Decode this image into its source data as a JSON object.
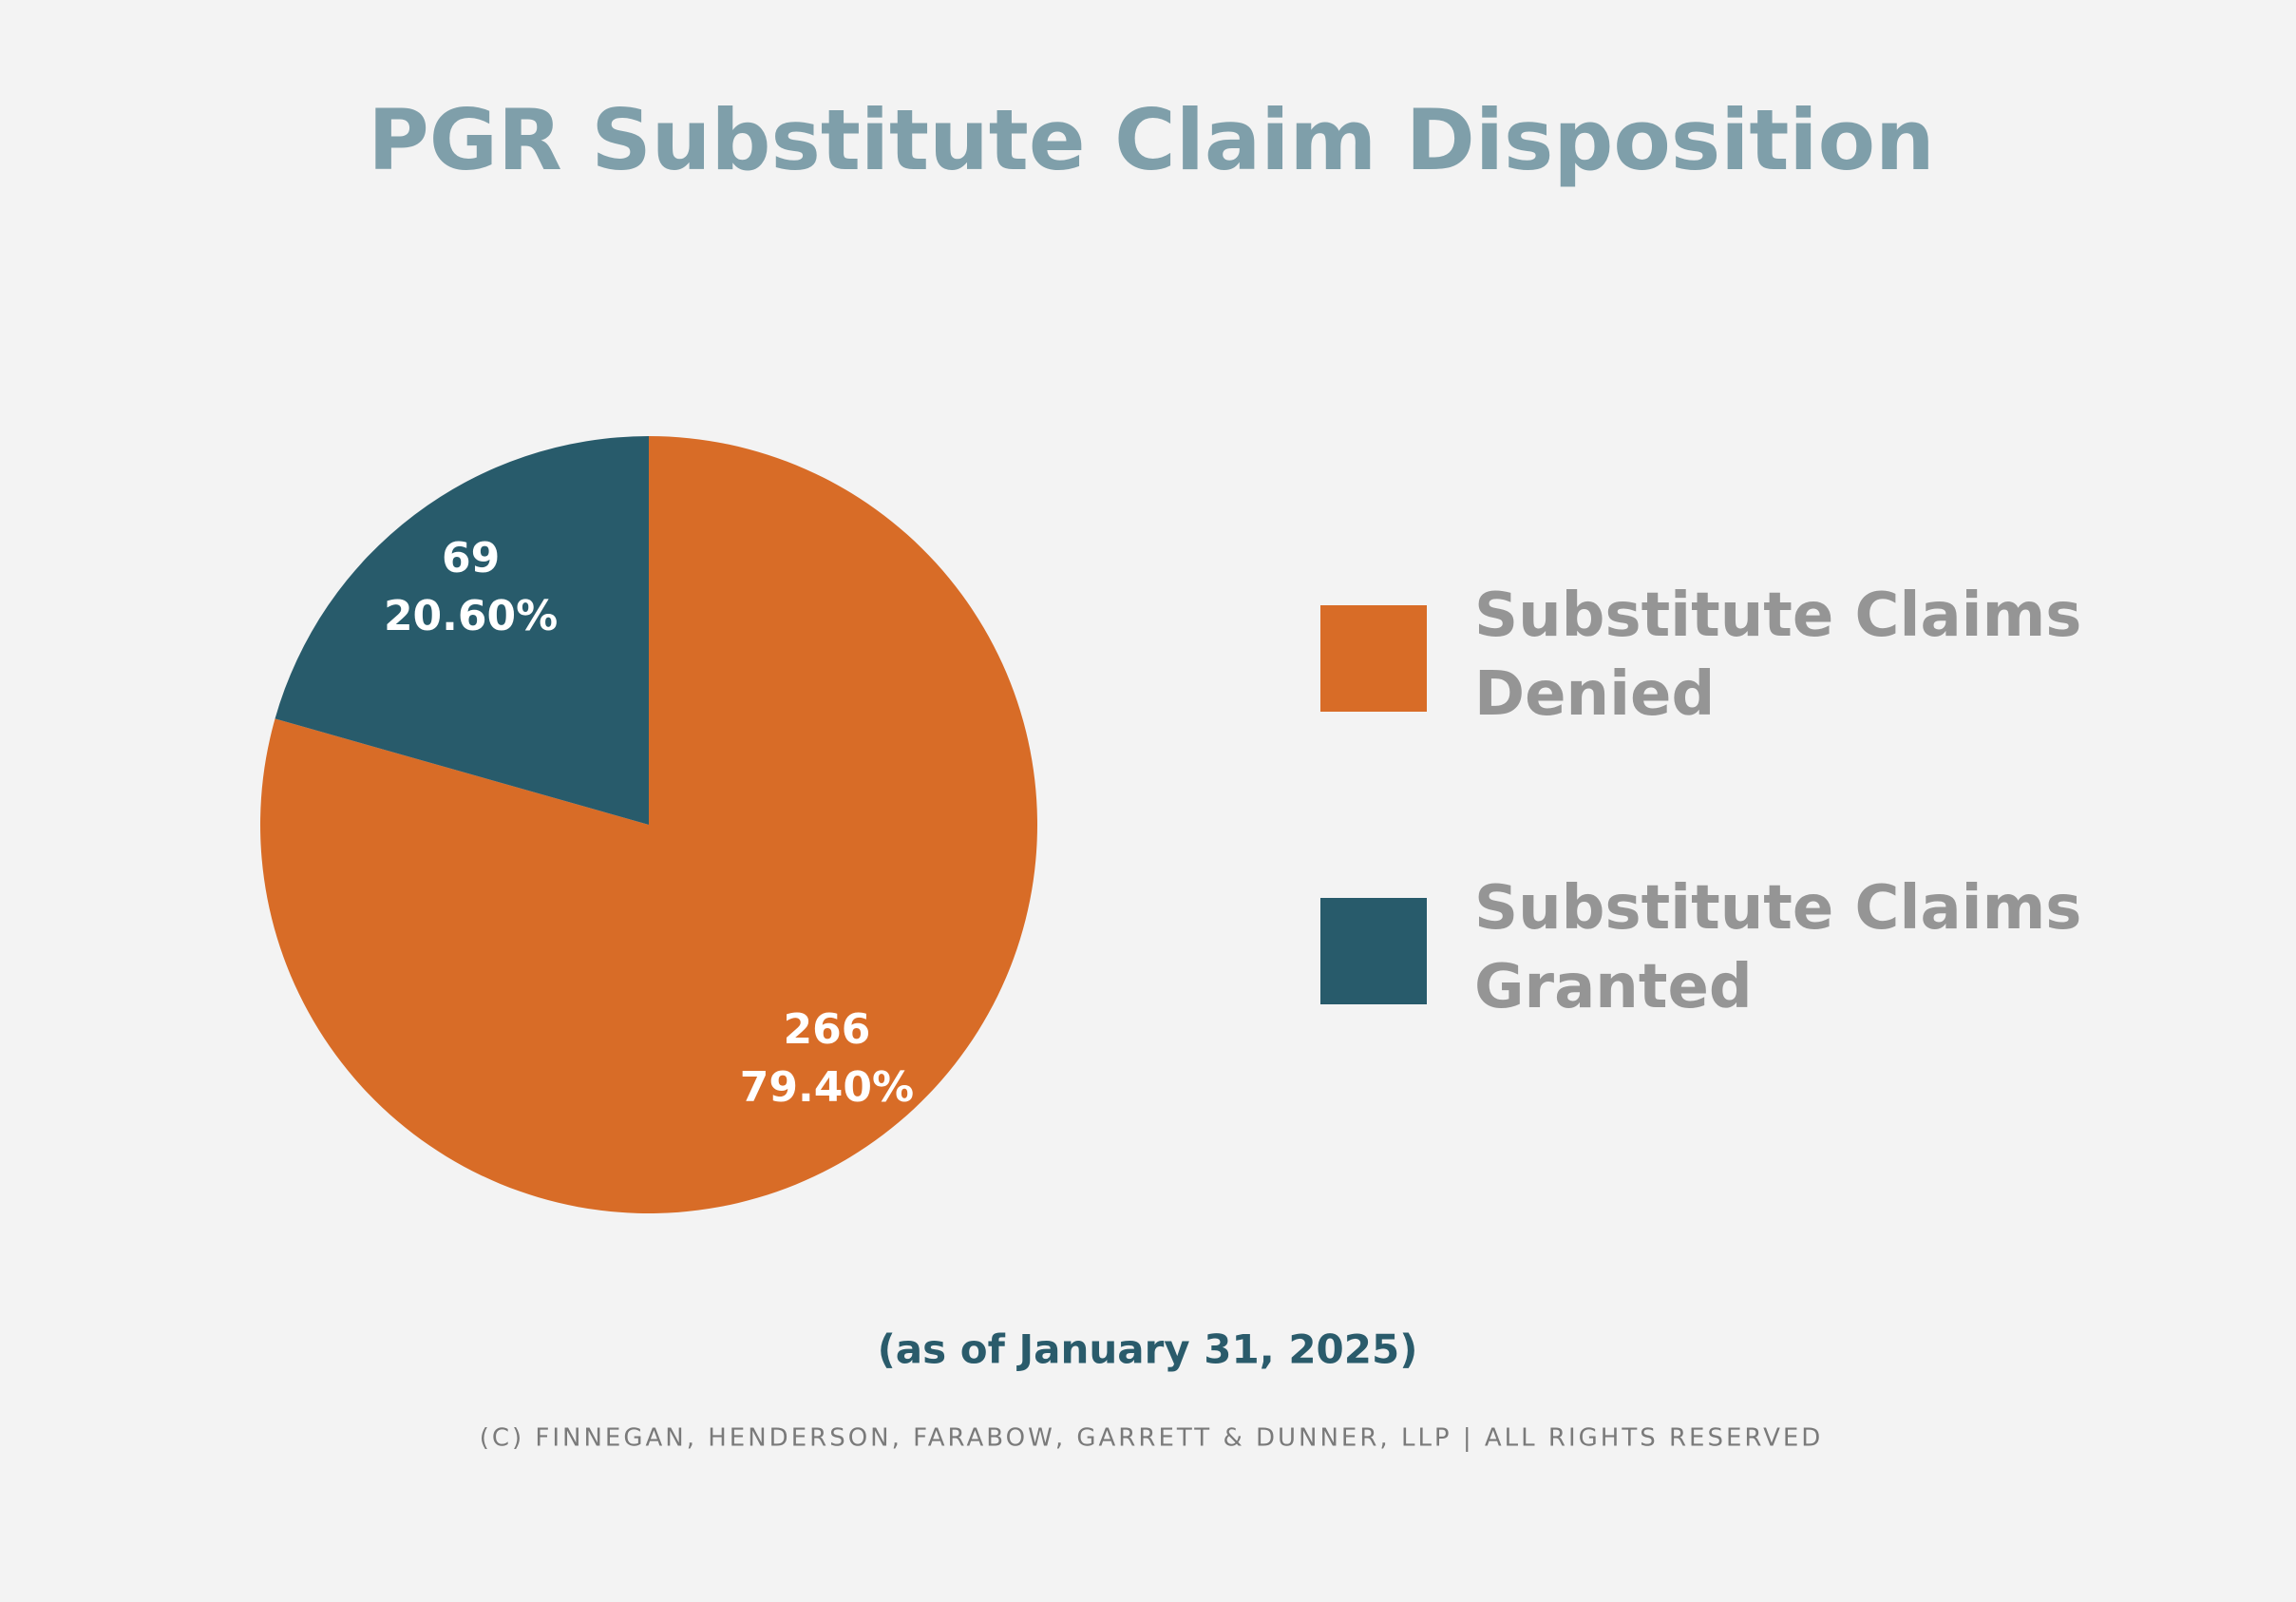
{
  "chart_data": {
    "type": "pie",
    "title": "PGR Substitute Claim Disposition",
    "subtitle": "(as of January 31, 2025)",
    "note": "(c) finnegan, henderson, farabow, garrett & dunner, llp | all rights reserved",
    "categories": [
      "Substitute Claims Denied",
      "Substitute Claims Granted"
    ],
    "values": [
      266,
      69
    ],
    "percentages": [
      79.4,
      20.6
    ],
    "percentage_labels": [
      "79.40%",
      "20.60%"
    ],
    "colors": [
      "#d86c27",
      "#285b6b"
    ]
  }
}
